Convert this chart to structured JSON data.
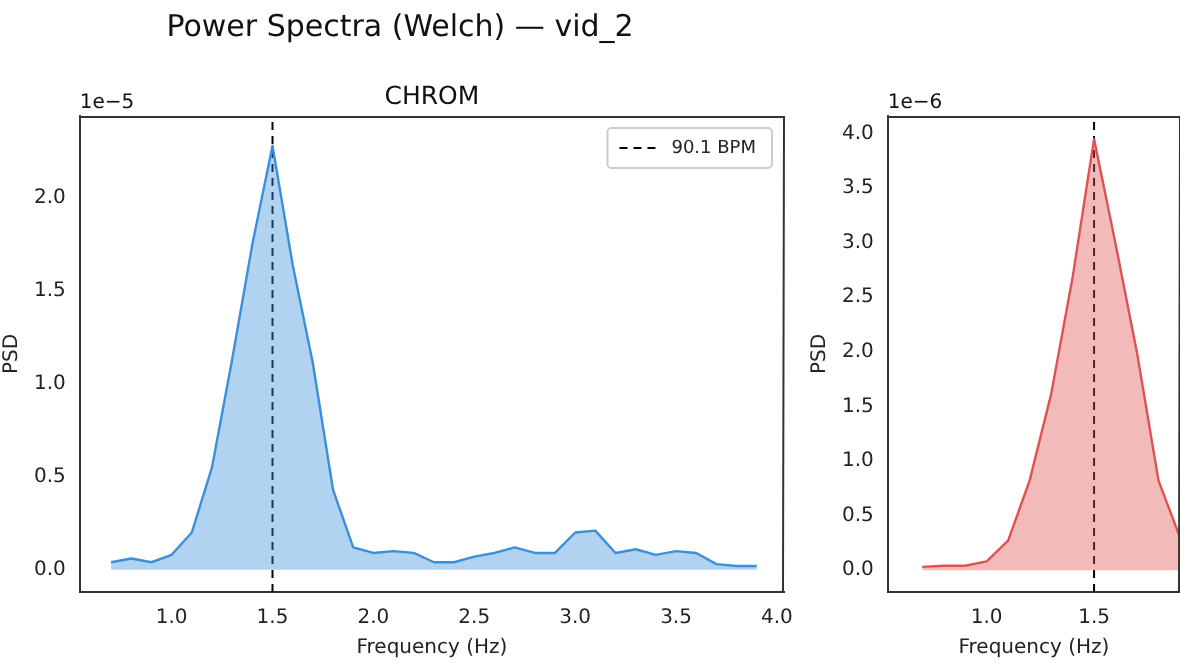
{
  "chart_data": [
    {
      "type": "area",
      "title": "Power Spectra (Welch) — vid_2",
      "subtitle": "CHROM",
      "xlabel": "Frequency (Hz)",
      "ylabel": "PSD",
      "annotations": [
        "1e−5"
      ],
      "x": [
        0.7,
        0.8,
        0.9,
        1.0,
        1.1,
        1.2,
        1.3,
        1.4,
        1.5,
        1.6,
        1.7,
        1.8,
        1.9,
        2.0,
        2.1,
        2.2,
        2.3,
        2.4,
        2.5,
        2.6,
        2.7,
        2.8,
        2.9,
        3.0,
        3.1,
        3.2,
        3.3,
        3.4,
        3.5,
        3.6,
        3.7,
        3.8,
        3.9
      ],
      "series": [
        {
          "color": "#3d8fd9",
          "values": [
            0.04,
            0.06,
            0.04,
            0.08,
            0.2,
            0.55,
            1.13,
            1.75,
            2.28,
            1.64,
            1.11,
            0.43,
            0.12,
            0.09,
            0.1,
            0.09,
            0.04,
            0.04,
            0.07,
            0.09,
            0.12,
            0.09,
            0.09,
            0.2,
            0.21,
            0.09,
            0.11,
            0.08,
            0.1,
            0.09,
            0.03,
            0.02,
            0.02
          ]
        }
      ],
      "xlim": [
        0.545,
        4.035
      ],
      "xticks": [
        {
          "value": 1,
          "label": "1.0"
        },
        {
          "value": 1.5,
          "label": "1.5"
        },
        {
          "value": 2,
          "label": "2.0"
        },
        {
          "value": 2.5,
          "label": "2.5"
        },
        {
          "value": 3,
          "label": "3.0"
        },
        {
          "value": 3.5,
          "label": "3.5"
        },
        {
          "value": 4,
          "label": "4.0"
        }
      ],
      "ylim": [
        -0.12,
        2.44
      ],
      "yticks": [
        {
          "value": 0,
          "label": "0.0"
        },
        0.5,
        {
          "value": 1,
          "label": "1.0"
        },
        1.5,
        {
          "value": 2,
          "label": "2.0"
        }
      ],
      "ref_lines": [
        {
          "axis": "x",
          "value": 1.5,
          "label": "90.1 BPM",
          "color": "#000000",
          "line_style": "dashed"
        }
      ],
      "legend": "top right",
      "grid": false
    },
    {
      "type": "area",
      "xlabel": "Frequency (Hz)",
      "ylabel": "PSD",
      "annotations": [
        "1e−6"
      ],
      "x": [
        0.7,
        0.8,
        0.9,
        1.0,
        1.1,
        1.2,
        1.3,
        1.4,
        1.5,
        1.6,
        1.7,
        1.8,
        1.9
      ],
      "series": [
        {
          "color": "#e05252",
          "values": [
            0.03,
            0.04,
            0.04,
            0.08,
            0.27,
            0.82,
            1.61,
            2.68,
            3.95,
            2.99,
            1.99,
            0.82,
            0.3
          ]
        }
      ],
      "xlim": [
        0.54,
        1.9
      ],
      "xticks": [
        {
          "value": 1,
          "label": "1.0"
        },
        {
          "value": 1.5,
          "label": "1.5"
        }
      ],
      "ylim": [
        -0.2,
        4.16
      ],
      "yticks": [
        {
          "value": 0,
          "label": "0.0"
        },
        0.5,
        {
          "value": 1,
          "label": "1.0"
        },
        1.5,
        {
          "value": 2,
          "label": "2.0"
        },
        2.5,
        {
          "value": 3,
          "label": "3.0"
        },
        3.5,
        {
          "value": 4,
          "label": "4.0"
        }
      ],
      "ref_lines": [
        {
          "axis": "x",
          "value": 1.5,
          "color": "#000000",
          "line_style": "dashed"
        }
      ],
      "grid": false
    }
  ]
}
